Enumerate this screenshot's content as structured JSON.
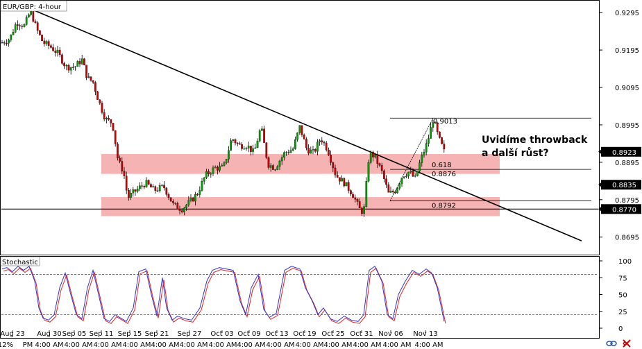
{
  "chart_data": {
    "type": "candlestick",
    "title": "EUR/GBP: 4-hour",
    "y_range": [
      0.865,
      0.9325
    ],
    "price_ticks": [
      "0.9295",
      "0.9195",
      "0.9095",
      "0.8995",
      "0.8895",
      "0.8795",
      "0.8695"
    ],
    "date_labels": [
      "Aug 23",
      "Aug 30",
      "Sep 05",
      "Sep 11",
      "Sep 15",
      "Sep 21",
      "Sep 27",
      "Oct 03",
      "Oct 09",
      "Oct 13",
      "Oct 19",
      "Oct 25",
      "Oct 31",
      "Nov 06",
      "Nov 13"
    ],
    "time_labels": [
      "12%",
      "PM",
      "4:00 AM",
      "4:00 AM",
      "4:00 AM",
      "4:00 AM",
      "4:00 AM",
      "4:00 AM",
      "4:00 AM",
      "4:00 AM",
      "4:00 AM",
      "4:00 AM",
      "4:00 AM",
      "4:00 AM",
      "4:00 AM",
      "4:00 AM"
    ],
    "price_badges": [
      {
        "text": "0.8923",
        "value": 0.8923,
        "style": "black"
      },
      {
        "text": "0.8835",
        "value": 0.8835,
        "style": "black"
      },
      {
        "text": "0.8770",
        "value": 0.877,
        "style": "black"
      }
    ],
    "trendline": {
      "from": {
        "date": "Aug 29",
        "price": 0.9305
      },
      "to": {
        "date": "Nov 22",
        "price": 0.8685
      }
    },
    "support_line": 0.877,
    "zones": [
      {
        "from": 0.8864,
        "to": 0.8917,
        "color": "#f4a6a6"
      },
      {
        "from": 0.8751,
        "to": 0.8802,
        "color": "#f4a6a6"
      }
    ],
    "fib_levels": [
      {
        "label": "0.9013",
        "price": 0.9013
      },
      {
        "label": "0.618",
        "price": 0.8876
      },
      {
        "label": "0.8876",
        "price": 0.8876
      },
      {
        "label": "0.8792",
        "price": 0.8792
      }
    ],
    "annotation": [
      "Uvidíme throwback",
      "a další růst?"
    ],
    "stochastic": {
      "title": "Stochastic",
      "ticks": [
        "100",
        "75",
        "50",
        "25",
        "0"
      ],
      "levels": [
        80,
        20
      ],
      "colors": {
        "k": "#3333cc",
        "d": "#dd2222"
      }
    },
    "colors": {
      "bull": "#00a000",
      "bear": "#cc0000",
      "zone": "#f4a6a6"
    }
  },
  "icons": [
    "link-icon",
    "close-icon"
  ]
}
